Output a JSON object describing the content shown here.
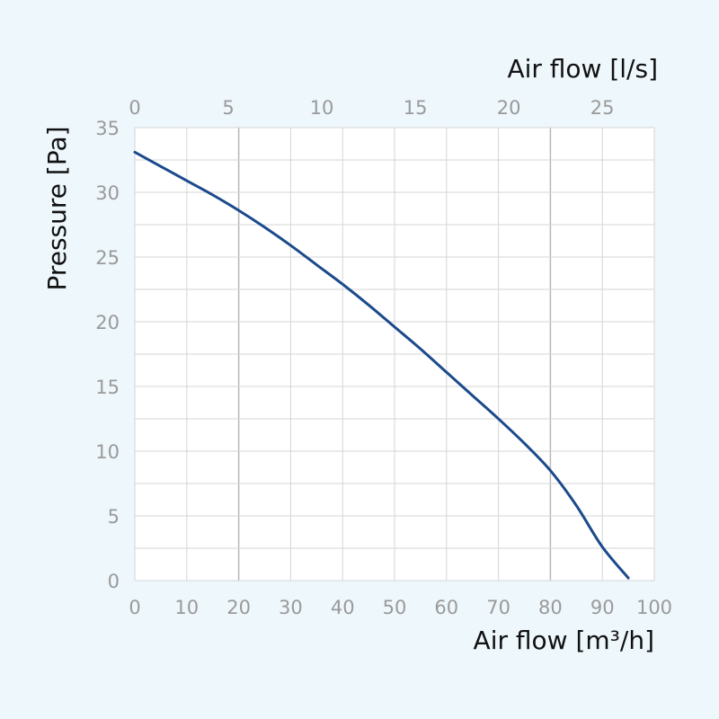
{
  "chart_data": {
    "type": "line",
    "title": "",
    "xlabel": "Air flow [m³/h]",
    "x2label": "Air flow [l/s]",
    "ylabel": "Pressure [Pa]",
    "xlim": [
      0,
      100
    ],
    "x2lim": [
      0,
      27.78
    ],
    "ylim": [
      0,
      35
    ],
    "x_ticks": [
      "0",
      "10",
      "20",
      "30",
      "40",
      "50",
      "60",
      "70",
      "80",
      "90",
      "100"
    ],
    "x2_ticks": [
      "0",
      "5",
      "10",
      "15",
      "20",
      "25"
    ],
    "y_ticks": [
      "0",
      "5",
      "10",
      "15",
      "20",
      "25",
      "30",
      "35"
    ],
    "grid": true,
    "series": [
      {
        "x": [
          0,
          5,
          10,
          15,
          20,
          25,
          30,
          35,
          40,
          45,
          50,
          55,
          60,
          65,
          70,
          75,
          80,
          85,
          90,
          95
        ],
        "y": [
          33.1,
          32.0,
          30.9,
          29.8,
          28.6,
          27.3,
          25.9,
          24.4,
          22.9,
          21.3,
          19.6,
          17.9,
          16.1,
          14.3,
          12.5,
          10.6,
          8.5,
          5.8,
          2.6,
          0.2
        ]
      }
    ]
  },
  "colors": {
    "background": "#eef7fc",
    "plot_background": "#ffffff",
    "series_line": "#1b4a8c",
    "grid": "#d6d6d6",
    "grid_major": "#b8b8b8",
    "tick_text": "#9a9a9a",
    "axis_title": "#111111"
  }
}
